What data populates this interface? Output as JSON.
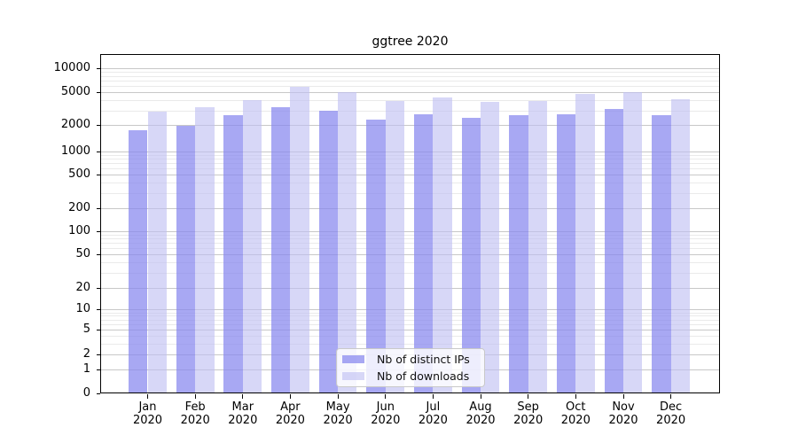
{
  "chart_data": {
    "type": "bar",
    "title": "ggtree 2020",
    "categories": [
      "Jan",
      "Feb",
      "Mar",
      "Apr",
      "May",
      "Jun",
      "Jul",
      "Aug",
      "Sep",
      "Oct",
      "Nov",
      "Dec"
    ],
    "category_year": "2020",
    "series": [
      {
        "name": "Nb of distinct IPs",
        "color": "#8686ee",
        "opacity": 0.72,
        "apparent_color": "#a8a8f3",
        "values": [
          1750,
          1950,
          2600,
          3250,
          2950,
          2350,
          2700,
          2450,
          2620,
          2720,
          3100,
          2650
        ]
      },
      {
        "name": "Nb of downloads",
        "color": "#bebef2",
        "opacity": 0.62,
        "apparent_color": "#d7d7f7",
        "values": [
          2900,
          3300,
          4050,
          5900,
          4950,
          3870,
          4280,
          3850,
          3900,
          4800,
          5050,
          4150
        ]
      }
    ],
    "y_ticks": [
      0,
      1,
      2,
      5,
      10,
      20,
      50,
      100,
      200,
      500,
      1000,
      2000,
      5000,
      10000
    ],
    "y_scale": "symlog",
    "ylim": [
      0,
      14000
    ],
    "xlabel": "",
    "ylabel": "",
    "grid": "on",
    "legend_position": "lower center"
  },
  "colors": {
    "grid_major": "#c8c8c8",
    "grid_minor": "#eaeaea",
    "axis": "#000000",
    "background": "#ffffff",
    "text": "#000000"
  }
}
